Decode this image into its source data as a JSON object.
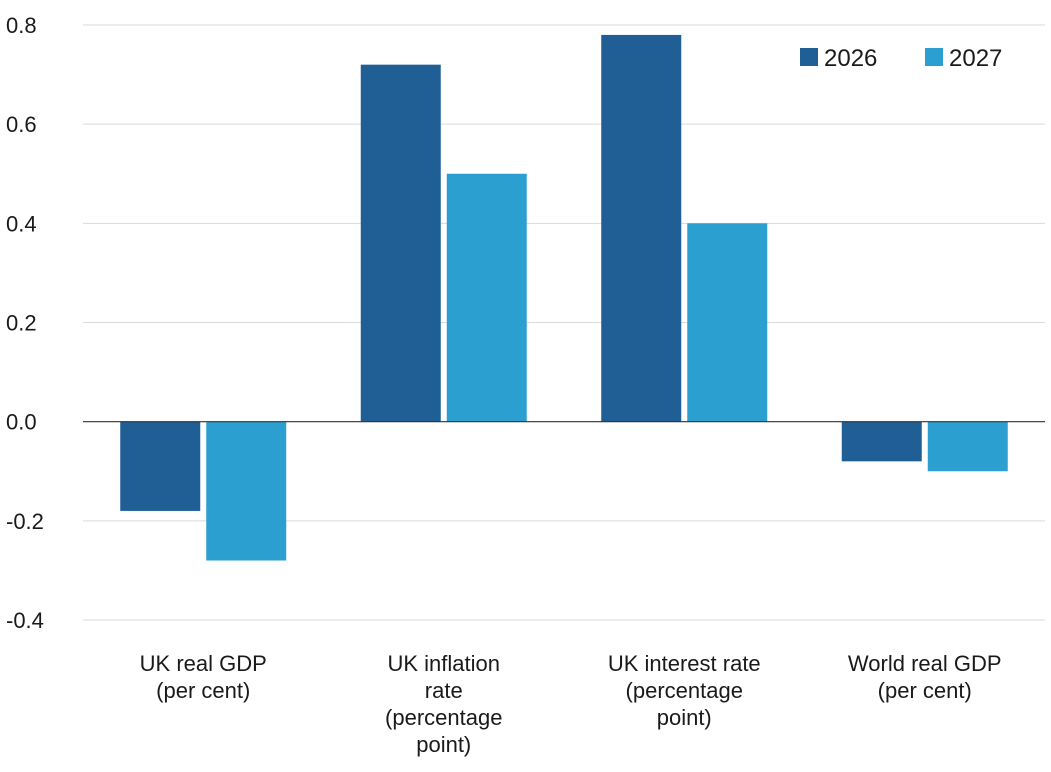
{
  "chart_data": {
    "type": "bar",
    "title": "",
    "xlabel": "",
    "ylabel": "",
    "ylim": [
      -0.4,
      0.8
    ],
    "yticks": [
      -0.4,
      -0.2,
      0.0,
      0.2,
      0.4,
      0.6,
      0.8
    ],
    "ytick_labels": [
      "-0.4",
      "-0.2",
      "0.0",
      "0.2",
      "0.4",
      "0.6",
      "0.8"
    ],
    "grid": true,
    "legend_position": "top-right",
    "categories": [
      [
        "UK real GDP",
        "(per cent)"
      ],
      [
        "UK inflation",
        "rate",
        "(percentage",
        "point)"
      ],
      [
        "UK interest rate",
        "(percentage",
        "point)"
      ],
      [
        "World real GDP",
        "(per cent)"
      ]
    ],
    "series": [
      {
        "name": "2026",
        "color": "#1f5f96",
        "values": [
          -0.18,
          0.72,
          0.78,
          -0.08
        ]
      },
      {
        "name": "2027",
        "color": "#2a9fd0",
        "values": [
          -0.28,
          0.5,
          0.4,
          -0.1
        ]
      }
    ]
  }
}
